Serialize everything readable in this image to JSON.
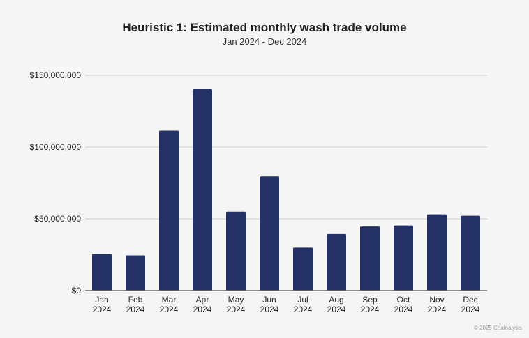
{
  "chart_data": {
    "type": "bar",
    "title": "Heuristic 1: Estimated monthly wash trade volume",
    "subtitle": "Jan 2024 - Dec 2024",
    "xlabel": "",
    "ylabel": "",
    "categories": [
      "Jan 2024",
      "Feb 2024",
      "Mar 2024",
      "Apr 2024",
      "May 2024",
      "Jun 2024",
      "Jul 2024",
      "Aug 2024",
      "Sep 2024",
      "Oct 2024",
      "Nov 2024",
      "Dec 2024"
    ],
    "values": [
      25500000,
      24500000,
      111400000,
      140300000,
      55000000,
      79500000,
      29900000,
      39400000,
      44600000,
      45300000,
      53100000,
      52100000
    ],
    "ylim": [
      0,
      150000000
    ],
    "yticks": [
      0,
      50000000,
      100000000,
      150000000
    ],
    "ytick_labels": [
      "$0",
      "$50,000,000",
      "$100,000,000",
      "$150,000,000"
    ],
    "grid": true,
    "bar_color": "#243166"
  },
  "credit": "© 2025 Chainalysis"
}
